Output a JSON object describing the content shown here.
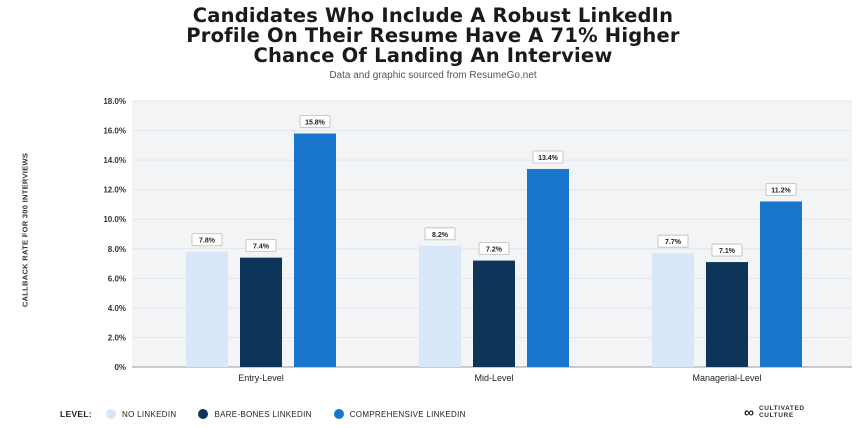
{
  "title_lines": [
    "Candidates Who Include A Robust LinkedIn",
    "Profile On Their Resume Have A 71% Higher",
    "Chance Of Landing An Interview"
  ],
  "subtitle": "Data and graphic sourced from ResumeGo.net",
  "legend_title": "LEVEL:",
  "brand": {
    "line1": "CULTIVATED",
    "line2": "CULTURE",
    "icon": "link-icon"
  },
  "colors": {
    "no": "#d8e7f7",
    "bare": "#0e3459",
    "comp": "#1877cc",
    "axis": "#333333",
    "grid": "#e3e6ea",
    "plot_bg": "#f3f4f5"
  },
  "chart_data": {
    "type": "bar",
    "title": "Candidates Who Include A Robust LinkedIn Profile On Their Resume Have A 71% Higher Chance Of Landing An Interview",
    "ylabel": "CALLBACK RATE FOR 300 INTERVIEWS",
    "xlabel": "",
    "categories": [
      "Entry-Level",
      "Mid-Level",
      "Managerial-Level"
    ],
    "ylim": [
      0,
      18
    ],
    "yticks": [
      "0%",
      "2.0%",
      "4.0%",
      "6.0%",
      "8.0%",
      "10.0%",
      "12.0%",
      "14.0%",
      "16.0%",
      "18.0%"
    ],
    "series": [
      {
        "name": "NO LINKEDIN",
        "values": [
          7.8,
          8.2,
          7.7
        ],
        "labels": [
          "7.8%",
          "8.2%",
          "7.7%"
        ],
        "color": "#d8e7f7"
      },
      {
        "name": "BARE-BONES LINKEDIN",
        "values": [
          7.4,
          7.2,
          7.1
        ],
        "labels": [
          "7.4%",
          "7.2%",
          "7.1%"
        ],
        "color": "#0e3459"
      },
      {
        "name": "COMPREHENSIVE LINKEDIN",
        "values": [
          15.8,
          13.4,
          11.2
        ],
        "labels": [
          "15.8%",
          "13.4%",
          "11.2%"
        ],
        "color": "#1877cc"
      }
    ],
    "grid": true,
    "legend_position": "bottom"
  }
}
